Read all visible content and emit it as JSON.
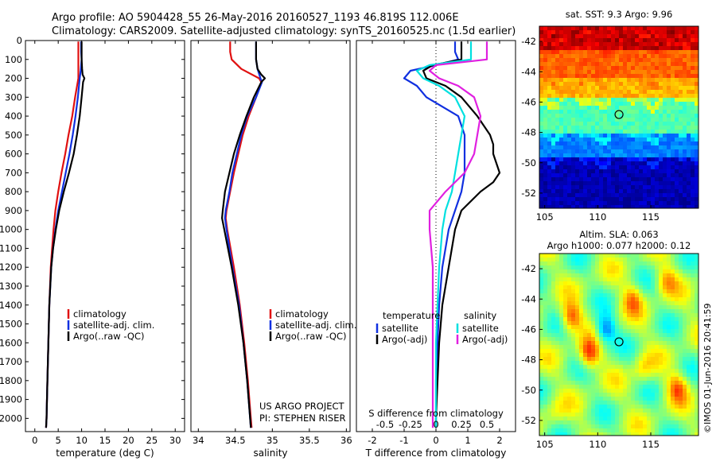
{
  "header": {
    "line1": "Argo profile: AO 5904428_55 26-May-2016 20160527_1193 46.819S 112.006E",
    "line2": "Climatology: CARS2009. Satellite-adjusted climatology: synTS_20160525.nc (1.5d earlier)"
  },
  "credits": {
    "project": "US ARGO PROJECT",
    "pi": "PI: STEPHEN RISER",
    "stamp": "©IMOS 01-Jun-2016 20:41:59"
  },
  "chart_data": [
    {
      "type": "line",
      "id": "temperature",
      "xlabel": "temperature (deg C)",
      "ylabel": "",
      "xlim": [
        -2,
        32
      ],
      "ylim": [
        2070,
        0
      ],
      "xticks": [
        0,
        5,
        10,
        15,
        20,
        25,
        30
      ],
      "yticks": [
        0,
        100,
        200,
        300,
        400,
        500,
        600,
        700,
        800,
        900,
        1000,
        1100,
        1200,
        1300,
        1400,
        1500,
        1600,
        1700,
        1800,
        1900,
        2000
      ],
      "legend": [
        "climatology",
        "satellite-adj. clim.",
        "Argo(..raw -QC)"
      ],
      "legend_colors": [
        "#e01010",
        "#1030e0",
        "#000000"
      ],
      "series": [
        {
          "name": "climatology",
          "color": "#e01010",
          "depth": [
            5,
            100,
            200,
            300,
            400,
            500,
            600,
            700,
            800,
            900,
            1000,
            1100,
            1200,
            1400,
            1600,
            1800,
            2000,
            2050
          ],
          "values": [
            9.3,
            9.3,
            9.3,
            8.6,
            8.0,
            7.2,
            6.5,
            5.7,
            5.0,
            4.4,
            4.0,
            3.7,
            3.4,
            3.1,
            2.9,
            2.7,
            2.5,
            2.4
          ]
        },
        {
          "name": "satellite-adj. clim.",
          "color": "#1030e0",
          "depth": [
            5,
            60,
            100,
            160,
            200,
            300,
            400,
            500,
            600,
            700,
            800,
            900,
            1000,
            1100,
            1200,
            1400,
            1600,
            1800,
            2000,
            2050
          ],
          "values": [
            9.9,
            9.9,
            10.0,
            9.8,
            9.6,
            9.2,
            8.7,
            8.1,
            7.4,
            6.6,
            5.8,
            5.0,
            4.4,
            3.9,
            3.5,
            3.1,
            2.9,
            2.7,
            2.5,
            2.4
          ]
        },
        {
          "name": "Argo(..raw -QC)",
          "color": "#000000",
          "depth": [
            5,
            50,
            100,
            150,
            180,
            200,
            220,
            300,
            400,
            500,
            600,
            700,
            800,
            900,
            1000,
            1100,
            1200,
            1400,
            1600,
            1800,
            2000,
            2050
          ],
          "values": [
            10.0,
            10.0,
            10.0,
            10.1,
            10.2,
            10.6,
            10.3,
            10.0,
            9.6,
            9.0,
            8.3,
            7.3,
            6.2,
            5.2,
            4.5,
            3.9,
            3.5,
            3.1,
            2.9,
            2.7,
            2.5,
            2.4
          ]
        }
      ]
    },
    {
      "type": "line",
      "id": "salinity",
      "xlabel": "salinity",
      "ylabel": "",
      "xlim": [
        33.9,
        36.05
      ],
      "ylim": [
        2070,
        0
      ],
      "xticks": [
        34,
        34.5,
        35,
        35.5,
        36
      ],
      "xticklabels": [
        "34",
        "34.5",
        "35",
        "35.5",
        "36"
      ],
      "legend": [
        "climatology",
        "satellite-adj. clim.",
        "Argo(..raw -QC)"
      ],
      "legend_colors": [
        "#e01010",
        "#1030e0",
        "#000000"
      ],
      "series": [
        {
          "name": "climatology",
          "color": "#e01010",
          "depth": [
            5,
            60,
            100,
            150,
            200,
            220,
            300,
            400,
            500,
            600,
            700,
            800,
            900,
            940,
            1000,
            1200,
            1400,
            1600,
            1800,
            2000,
            2050
          ],
          "values": [
            34.43,
            34.43,
            34.45,
            34.58,
            34.82,
            34.85,
            34.78,
            34.68,
            34.6,
            34.54,
            34.48,
            34.43,
            34.38,
            34.37,
            34.39,
            34.48,
            34.56,
            34.62,
            34.67,
            34.71,
            34.72
          ]
        },
        {
          "name": "satellite-adj. clim.",
          "color": "#1030e0",
          "depth": [
            5,
            100,
            150,
            200,
            220,
            300,
            400,
            500,
            600,
            700,
            800,
            900,
            940,
            1000,
            1200,
            1400,
            1600,
            1800,
            2000,
            2050
          ],
          "values": [
            34.78,
            34.78,
            34.8,
            34.84,
            34.86,
            34.78,
            34.66,
            34.58,
            34.52,
            34.46,
            34.42,
            34.37,
            34.36,
            34.38,
            34.46,
            34.55,
            34.61,
            34.66,
            34.7,
            34.71
          ]
        },
        {
          "name": "Argo(..raw -QC)",
          "color": "#000000",
          "depth": [
            5,
            100,
            150,
            180,
            200,
            220,
            300,
            400,
            500,
            600,
            700,
            800,
            900,
            940,
            1000,
            1200,
            1400,
            1600,
            1800,
            2000,
            2050
          ],
          "values": [
            34.78,
            34.78,
            34.8,
            34.85,
            34.9,
            34.85,
            34.75,
            34.65,
            34.56,
            34.48,
            34.42,
            34.36,
            34.33,
            34.32,
            34.35,
            34.45,
            34.54,
            34.61,
            34.66,
            34.7,
            34.71
          ]
        }
      ]
    },
    {
      "type": "line",
      "id": "difference",
      "xlabel": "T difference from climatology",
      "xlabel_top": "S difference from climatology",
      "ylabel": "",
      "xlim": [
        -2.5,
        2.5
      ],
      "ylim": [
        2070,
        0
      ],
      "xticks": [
        -2,
        -1,
        0,
        1,
        2
      ],
      "xticklabels": [
        "-2",
        "-1",
        "0",
        "1",
        "2"
      ],
      "sticks_pos": [
        -1.6,
        -0.8,
        0.0,
        0.8,
        1.6
      ],
      "sticklabels": [
        "-0.5",
        "-0.25",
        "0",
        "0.25",
        "0.5"
      ],
      "legend_headers": [
        "temperature",
        "salinity"
      ],
      "legend": [
        "satellite",
        "Argo(-adj)",
        "satellite",
        "Argo(-adj)"
      ],
      "legend_colors": [
        "#1030e0",
        "#000000",
        "#00e0e0",
        "#e020e0"
      ],
      "series": [
        {
          "name": "temperature satellite",
          "color": "#1030e0",
          "depth": [
            5,
            60,
            100,
            130,
            160,
            200,
            240,
            300,
            400,
            500,
            600,
            700,
            800,
            900,
            1000,
            1200,
            1400,
            1600,
            1800,
            2000,
            2050
          ],
          "values": [
            0.6,
            0.6,
            0.7,
            0.0,
            -0.8,
            -1.0,
            -0.6,
            -0.3,
            0.7,
            0.9,
            0.9,
            0.9,
            0.8,
            0.6,
            0.4,
            0.2,
            0.1,
            0.05,
            0.0,
            0.0,
            0.0
          ]
        },
        {
          "name": "temperature Argo(-adj)",
          "color": "#000000",
          "depth": [
            5,
            60,
            100,
            130,
            160,
            200,
            240,
            300,
            400,
            500,
            550,
            600,
            700,
            750,
            800,
            900,
            1000,
            1100,
            1200,
            1400,
            1600,
            1800,
            2000,
            2050
          ],
          "values": [
            0.8,
            0.8,
            0.8,
            -0.1,
            -0.4,
            -0.3,
            0.3,
            0.8,
            1.3,
            1.7,
            1.8,
            1.8,
            2.0,
            1.8,
            1.4,
            0.8,
            0.6,
            0.5,
            0.4,
            0.2,
            0.1,
            0.05,
            0.0,
            0.0
          ]
        },
        {
          "name": "salinity satellite",
          "color": "#00e0e0",
          "depth": [
            5,
            60,
            100,
            130,
            160,
            200,
            240,
            300,
            400,
            500,
            600,
            700,
            800,
            900,
            1000,
            1200,
            1400,
            1600,
            1800,
            2000,
            2050
          ],
          "values": [
            1.1,
            1.1,
            1.1,
            -0.2,
            -0.6,
            -0.4,
            0.1,
            0.6,
            0.9,
            0.8,
            0.7,
            0.6,
            0.5,
            0.3,
            0.2,
            0.1,
            0.05,
            0.0,
            0.0,
            0.0,
            0.0
          ]
        },
        {
          "name": "salinity Argo(-adj)",
          "color": "#e020e0",
          "depth": [
            5,
            60,
            100,
            130,
            160,
            200,
            240,
            300,
            400,
            500,
            600,
            700,
            800,
            900,
            1000,
            1200,
            1400,
            1600,
            1800,
            2000,
            2050
          ],
          "values": [
            1.6,
            1.6,
            1.6,
            0.0,
            -0.2,
            0.1,
            0.7,
            1.2,
            1.4,
            1.3,
            1.2,
            0.9,
            0.3,
            -0.2,
            -0.2,
            -0.1,
            -0.1,
            -0.1,
            -0.1,
            -0.1,
            -0.1
          ]
        }
      ]
    },
    {
      "type": "heatmap",
      "id": "sst_map",
      "title": "sat. SST: 9.3 Argo: 9.96",
      "xlim": [
        104.5,
        119.5
      ],
      "ylim": [
        -53,
        -41
      ],
      "xticks": [
        105,
        110,
        115
      ],
      "yticks": [
        -42,
        -44,
        -46,
        -48,
        -50,
        -52
      ],
      "marker": {
        "lon": 112.006,
        "lat": -46.819
      },
      "colormap": "jet",
      "zones": [
        {
          "lat_min": -53,
          "lat_max": -49.6,
          "value": 0.05
        },
        {
          "lat_min": -49.6,
          "lat_max": -48.0,
          "value": 0.25
        },
        {
          "lat_min": -48.0,
          "lat_max": -45.8,
          "value": 0.45
        },
        {
          "lat_min": -45.8,
          "lat_max": -44.4,
          "value": 0.7
        },
        {
          "lat_min": -44.4,
          "lat_max": -42.2,
          "value": 0.78
        },
        {
          "lat_min": -42.2,
          "lat_max": -41,
          "value": 0.88
        }
      ]
    },
    {
      "type": "heatmap",
      "id": "sla_map",
      "title": "Altim. SLA: 0.063",
      "subtitle": "Argo h1000: 0.077 h2000: 0.12",
      "xlim": [
        104.5,
        119.5
      ],
      "ylim": [
        -53,
        -41
      ],
      "xticks": [
        105,
        110,
        115
      ],
      "yticks": [
        -42,
        -44,
        -46,
        -48,
        -50,
        -52
      ],
      "marker": {
        "lon": 112.006,
        "lat": -46.819
      },
      "colormap": "jet",
      "features": [
        {
          "lon": 107.5,
          "lat": -45.2,
          "value": 0.8
        },
        {
          "lon": 109.2,
          "lat": -47.6,
          "value": 0.82
        },
        {
          "lon": 110.7,
          "lat": -46.0,
          "value": 0.25
        },
        {
          "lon": 113.3,
          "lat": -44.0,
          "value": 0.72
        },
        {
          "lon": 116.5,
          "lat": -42.8,
          "value": 0.7
        },
        {
          "lon": 117.5,
          "lat": -49.8,
          "value": 0.75
        },
        {
          "lon": 114.3,
          "lat": -48.6,
          "value": 0.65
        },
        {
          "lon": 106.0,
          "lat": -51.5,
          "value": 0.6
        }
      ]
    }
  ]
}
